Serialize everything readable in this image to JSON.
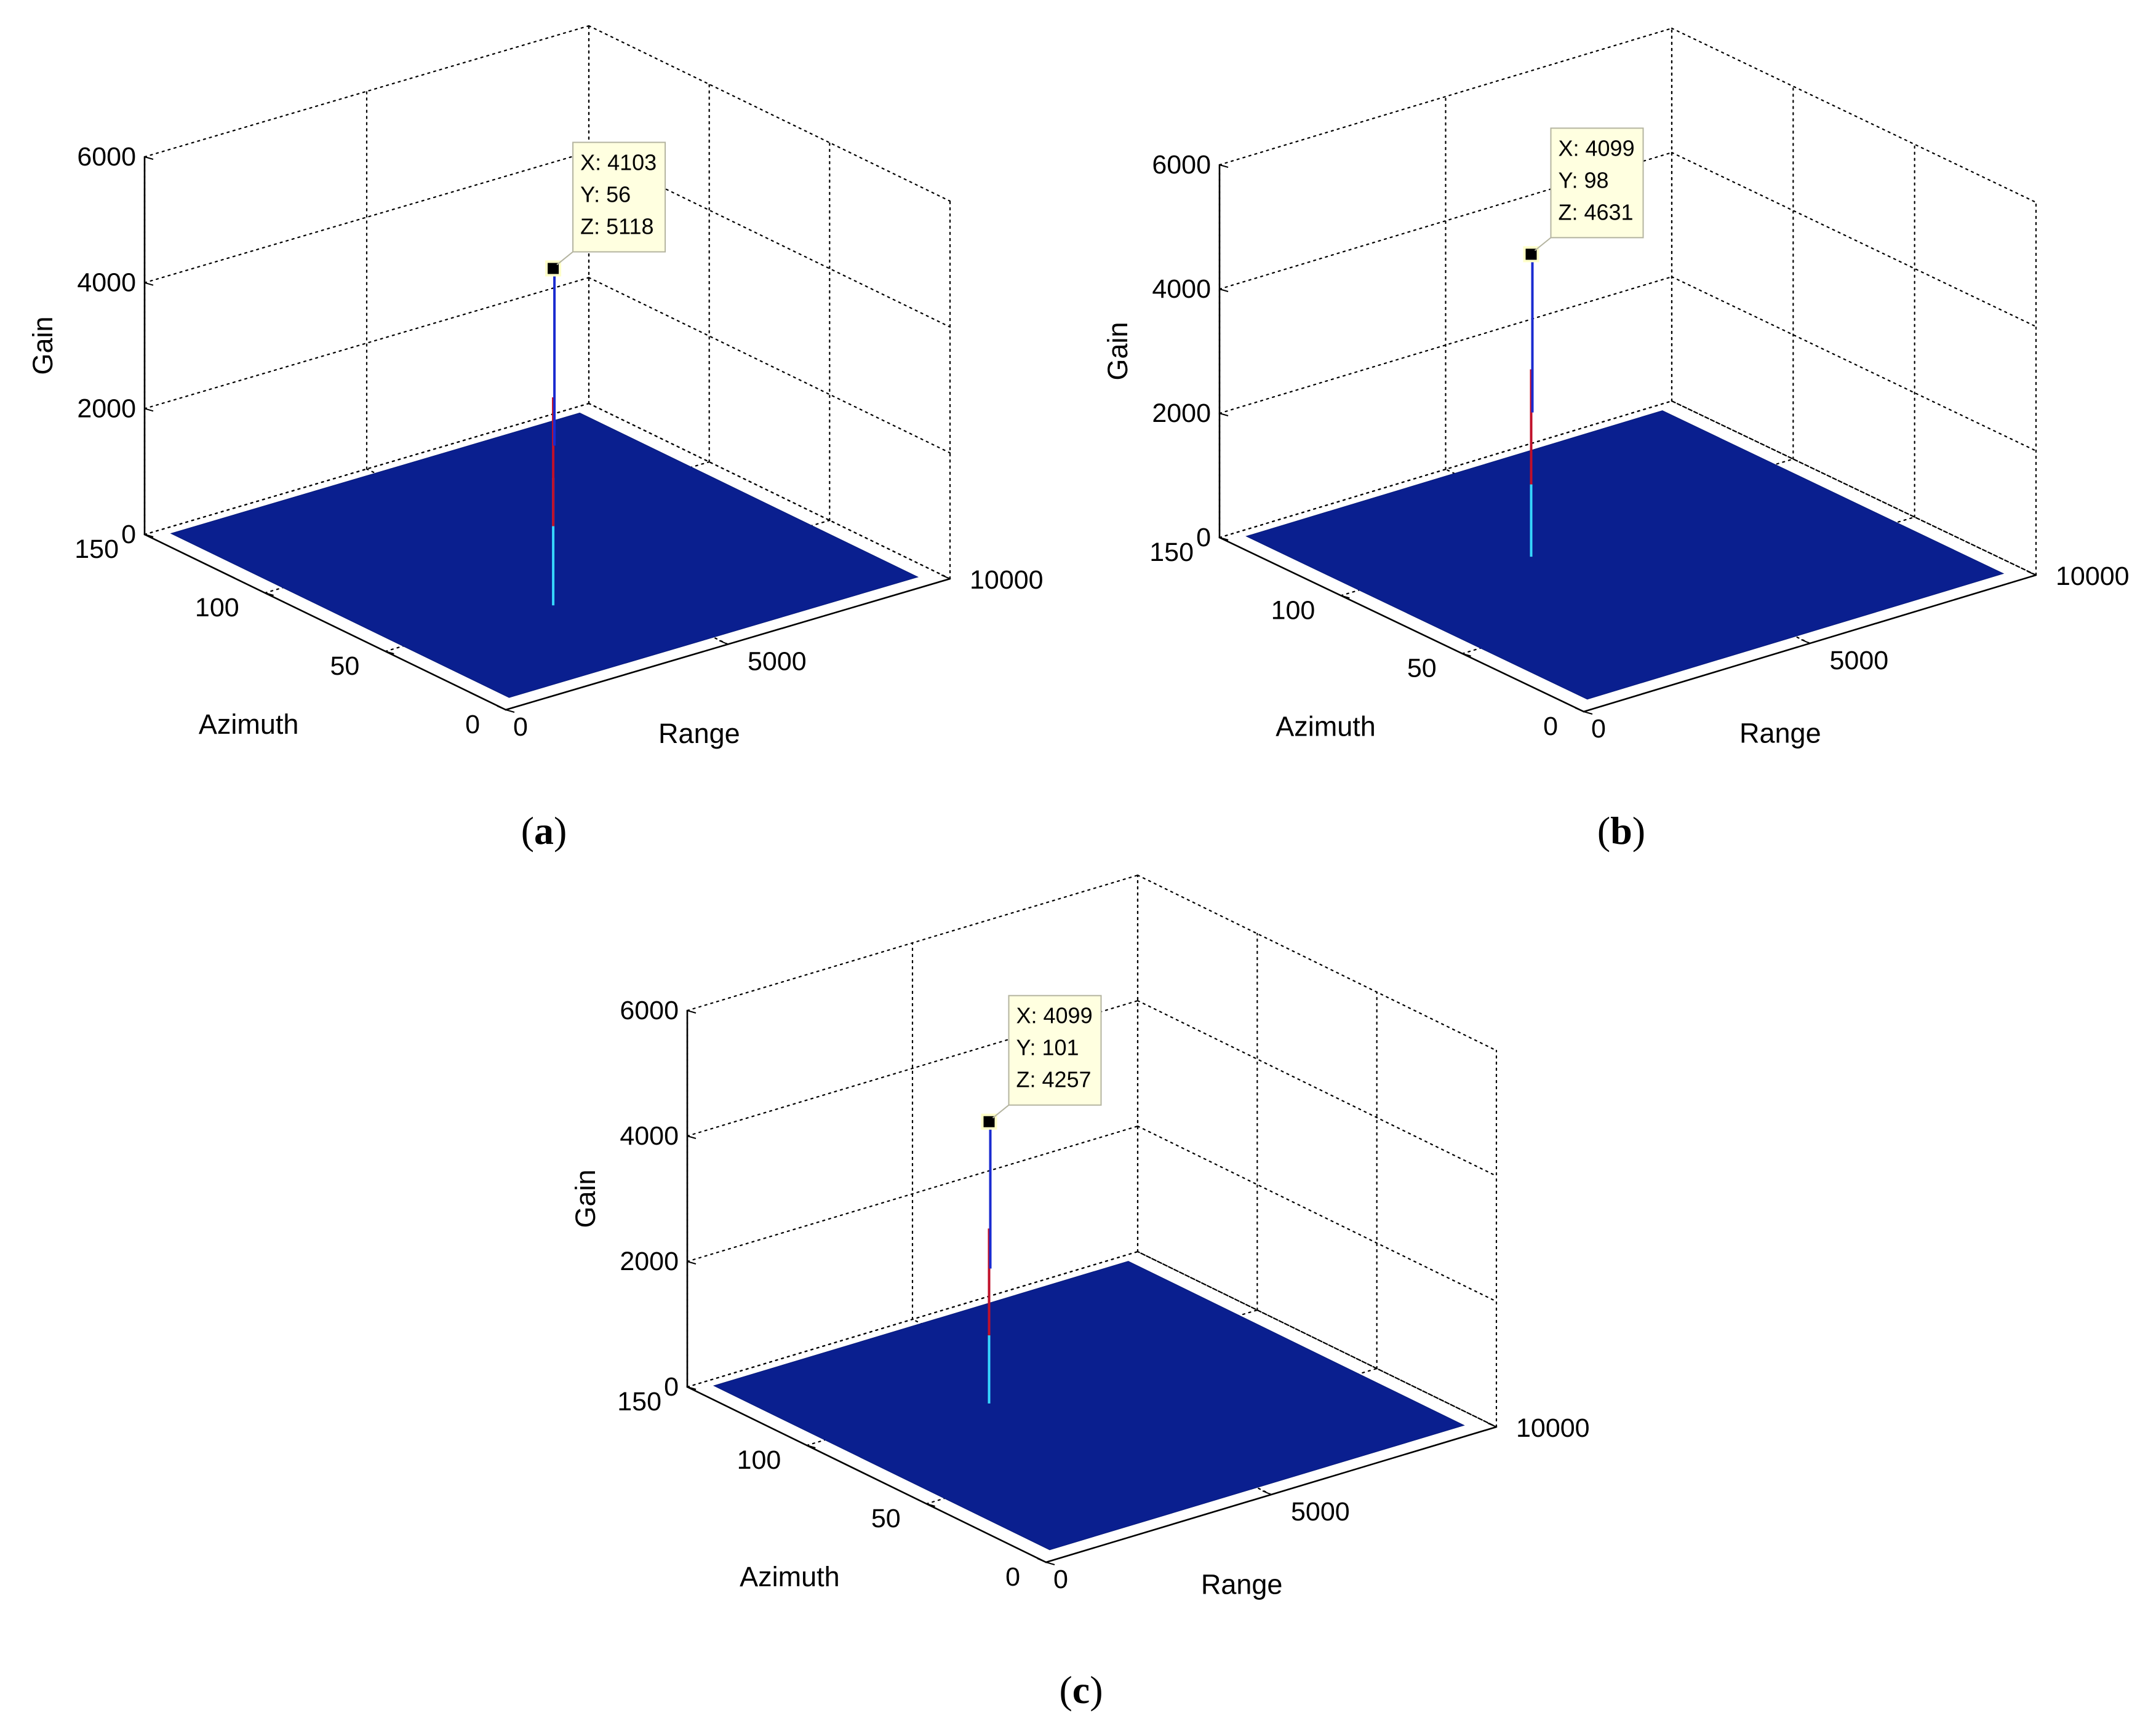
{
  "chart_data": [
    {
      "type": "surface",
      "panel": "a",
      "xlabel": "Range",
      "ylabel": "Azimuth",
      "zlabel": "Gain",
      "xlim": [
        0,
        10000
      ],
      "ylim": [
        0,
        150
      ],
      "zlim": [
        0,
        6000
      ],
      "xticks": [
        "0",
        "5000",
        "10000"
      ],
      "yticks": [
        "0",
        "50",
        "100",
        "150"
      ],
      "zticks": [
        "0",
        "2000",
        "4000",
        "6000"
      ],
      "grid": true,
      "surface_color": "#0a1f8f",
      "peak": {
        "x": 4103,
        "y": 56,
        "z": 5118
      },
      "datatip": [
        "X: 4103",
        "Y: 56",
        "Z: 5118"
      ]
    },
    {
      "type": "surface",
      "panel": "b",
      "xlabel": "Range",
      "ylabel": "Azimuth",
      "zlabel": "Gain",
      "xlim": [
        0,
        10000
      ],
      "ylim": [
        0,
        150
      ],
      "zlim": [
        0,
        6000
      ],
      "xticks": [
        "0",
        "5000",
        "10000"
      ],
      "yticks": [
        "0",
        "50",
        "100",
        "150"
      ],
      "zticks": [
        "0",
        "2000",
        "4000",
        "6000"
      ],
      "grid": true,
      "surface_color": "#0a1f8f",
      "peak": {
        "x": 4099,
        "y": 98,
        "z": 4631
      },
      "datatip": [
        "X: 4099",
        "Y: 98",
        "Z: 4631"
      ]
    },
    {
      "type": "surface",
      "panel": "c",
      "xlabel": "Range",
      "ylabel": "Azimuth",
      "zlabel": "Gain",
      "xlim": [
        0,
        10000
      ],
      "ylim": [
        0,
        150
      ],
      "zlim": [
        0,
        6000
      ],
      "xticks": [
        "0",
        "5000",
        "10000"
      ],
      "yticks": [
        "0",
        "50",
        "100",
        "150"
      ],
      "zticks": [
        "0",
        "2000",
        "4000",
        "6000"
      ],
      "grid": true,
      "surface_color": "#0a1f8f",
      "peak": {
        "x": 4099,
        "y": 101,
        "z": 4257
      },
      "datatip": [
        "X: 4099",
        "Y: 101",
        "Z: 4257"
      ]
    }
  ],
  "captions": [
    {
      "open": "(",
      "letter": "a",
      "close": ")"
    },
    {
      "open": "(",
      "letter": "b",
      "close": ")"
    },
    {
      "open": "(",
      "letter": "c",
      "close": ")"
    }
  ]
}
